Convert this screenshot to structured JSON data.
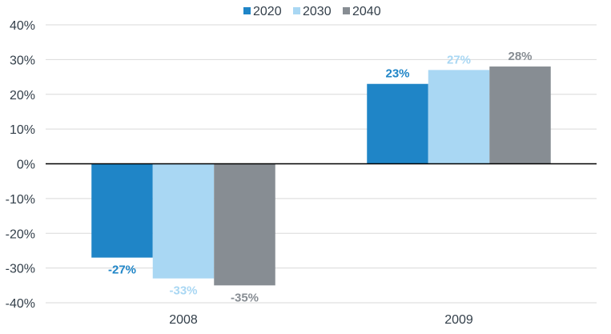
{
  "chart_data": {
    "type": "bar",
    "categories": [
      "2008",
      "2009"
    ],
    "series": [
      {
        "name": "2020",
        "values": [
          -27,
          23
        ],
        "labels": [
          "-27%",
          "23%"
        ],
        "color": "#1f85c7"
      },
      {
        "name": "2030",
        "values": [
          -33,
          27
        ],
        "labels": [
          "-33%",
          "27%"
        ],
        "color": "#a9d7f3"
      },
      {
        "name": "2040",
        "values": [
          -35,
          28
        ],
        "labels": [
          "-35%",
          "28%"
        ],
        "color": "#878d93"
      }
    ],
    "ylim": [
      -40,
      40
    ],
    "yticks": [
      40,
      30,
      20,
      10,
      0,
      -10,
      -20,
      -30,
      -40
    ],
    "ytick_labels": [
      "40%",
      "30%",
      "20%",
      "10%",
      "0%",
      "-10%",
      "-20%",
      "-30%",
      "-40%"
    ],
    "title": "",
    "xlabel": "",
    "ylabel": "",
    "grid": true,
    "legend_position": "top-center",
    "colors": {
      "grid": "#d9d9d9",
      "zero_line": "#000000",
      "text": "#333f4a"
    }
  }
}
